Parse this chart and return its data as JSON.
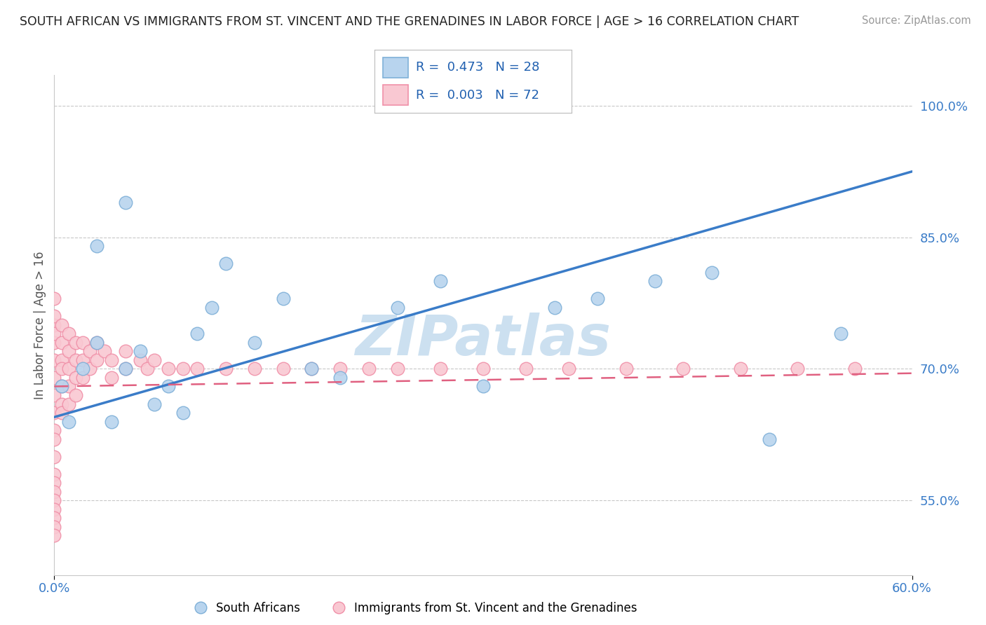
{
  "title": "SOUTH AFRICAN VS IMMIGRANTS FROM ST. VINCENT AND THE GRENADINES IN LABOR FORCE | AGE > 16 CORRELATION CHART",
  "source": "Source: ZipAtlas.com",
  "ylabel": "In Labor Force | Age > 16",
  "xlim": [
    0.0,
    0.6
  ],
  "ylim": [
    0.465,
    1.035
  ],
  "yticks": [
    0.55,
    0.7,
    0.85,
    1.0
  ],
  "ytick_labels": [
    "55.0%",
    "70.0%",
    "85.0%",
    "100.0%"
  ],
  "xticks": [
    0.0,
    0.6
  ],
  "xtick_labels": [
    "0.0%",
    "60.0%"
  ],
  "background_color": "#ffffff",
  "grid_color": "#c8c8c8",
  "blue_scatter_face": "#b8d4ee",
  "blue_scatter_edge": "#7fb0d8",
  "pink_scatter_face": "#f9c8d2",
  "pink_scatter_edge": "#f090a8",
  "line_blue": "#3a7cc8",
  "line_pink": "#e06080",
  "watermark_color": "#cce0f0",
  "sa_x": [
    0.005,
    0.01,
    0.02,
    0.03,
    0.04,
    0.05,
    0.06,
    0.07,
    0.09,
    0.1,
    0.12,
    0.14,
    0.16,
    0.18,
    0.2,
    0.24,
    0.27,
    0.3,
    0.35,
    0.38,
    0.42,
    0.46,
    0.5,
    0.55,
    0.03,
    0.05,
    0.08,
    0.11
  ],
  "sa_y": [
    0.68,
    0.64,
    0.7,
    0.73,
    0.64,
    0.7,
    0.72,
    0.66,
    0.65,
    0.74,
    0.82,
    0.73,
    0.78,
    0.7,
    0.69,
    0.77,
    0.8,
    0.68,
    0.77,
    0.78,
    0.8,
    0.81,
    0.62,
    0.74,
    0.84,
    0.89,
    0.68,
    0.77
  ],
  "svg_x": [
    0.0,
    0.0,
    0.0,
    0.0,
    0.0,
    0.0,
    0.0,
    0.0,
    0.0,
    0.0,
    0.0,
    0.0,
    0.0,
    0.0,
    0.0,
    0.0,
    0.0,
    0.0,
    0.0,
    0.0,
    0.005,
    0.005,
    0.005,
    0.005,
    0.005,
    0.005,
    0.005,
    0.01,
    0.01,
    0.01,
    0.01,
    0.01,
    0.015,
    0.015,
    0.015,
    0.015,
    0.02,
    0.02,
    0.02,
    0.025,
    0.025,
    0.03,
    0.03,
    0.035,
    0.04,
    0.04,
    0.05,
    0.05,
    0.06,
    0.065,
    0.07,
    0.08,
    0.09,
    0.1,
    0.12,
    0.14,
    0.16,
    0.18,
    0.2,
    0.22,
    0.24,
    0.27,
    0.3,
    0.33,
    0.36,
    0.4,
    0.44,
    0.48,
    0.52,
    0.56
  ],
  "svg_y": [
    0.75,
    0.73,
    0.71,
    0.69,
    0.67,
    0.65,
    0.63,
    0.62,
    0.6,
    0.58,
    0.57,
    0.56,
    0.55,
    0.54,
    0.53,
    0.52,
    0.51,
    0.78,
    0.76,
    0.74,
    0.75,
    0.73,
    0.71,
    0.7,
    0.68,
    0.66,
    0.65,
    0.74,
    0.72,
    0.7,
    0.68,
    0.66,
    0.73,
    0.71,
    0.69,
    0.67,
    0.73,
    0.71,
    0.69,
    0.72,
    0.7,
    0.73,
    0.71,
    0.72,
    0.71,
    0.69,
    0.72,
    0.7,
    0.71,
    0.7,
    0.71,
    0.7,
    0.7,
    0.7,
    0.7,
    0.7,
    0.7,
    0.7,
    0.7,
    0.7,
    0.7,
    0.7,
    0.7,
    0.7,
    0.7,
    0.7,
    0.7,
    0.7,
    0.7,
    0.7
  ],
  "blue_line_x0": 0.0,
  "blue_line_y0": 0.645,
  "blue_line_x1": 0.6,
  "blue_line_y1": 0.925,
  "pink_line_x0": 0.0,
  "pink_line_y0": 0.68,
  "pink_line_x1": 0.6,
  "pink_line_y1": 0.695
}
